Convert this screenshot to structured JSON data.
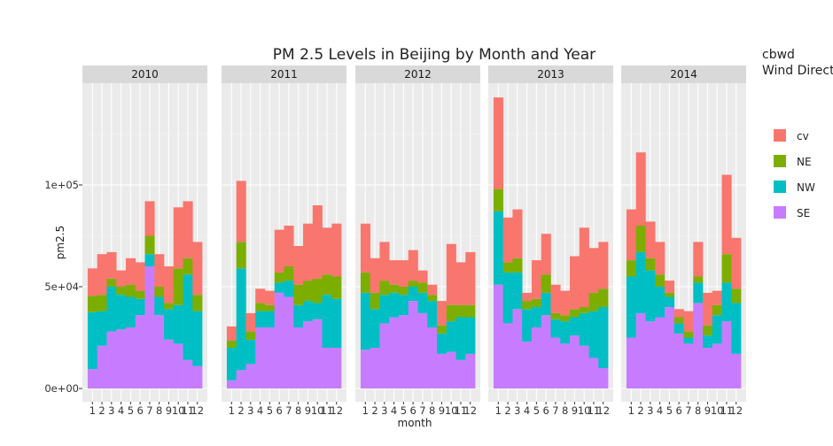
{
  "chart_data": {
    "type": "bar",
    "stacked": true,
    "title": "PM 2.5 Levels in Beijing by Month and Year",
    "xlabel": "month",
    "ylabel": "pm2.5",
    "ylim": [
      0,
      150000
    ],
    "y_ticks": [
      {
        "value": 0,
        "label": "0e+00"
      },
      {
        "value": 50000,
        "label": "5e+04"
      },
      {
        "value": 100000,
        "label": "1e+05"
      }
    ],
    "categories": [
      "1",
      "2",
      "3",
      "4",
      "5",
      "6",
      "7",
      "8",
      "9",
      "10",
      "11",
      "12"
    ],
    "legend": {
      "title_lines": [
        "cbwd",
        "Wind Direction"
      ],
      "position": "right",
      "items": [
        {
          "label": "cv",
          "color": "#F8766D"
        },
        {
          "label": "NE",
          "color": "#7CAE00"
        },
        {
          "label": "NW",
          "color": "#00BFC4"
        },
        {
          "label": "SE",
          "color": "#C77CFF"
        }
      ]
    },
    "stack_order": [
      "SE",
      "NW",
      "NE",
      "cv"
    ],
    "panels": [
      {
        "year": "2010",
        "series": [
          {
            "name": "SE",
            "values": [
              9500,
              21000,
              28000,
              29000,
              30000,
              36000,
              60000,
              36000,
              24000,
              22000,
              14000,
              11000
            ]
          },
          {
            "name": "NW",
            "values": [
              28000,
              17000,
              22000,
              17000,
              15000,
              8000,
              6000,
              9000,
              15000,
              19000,
              42000,
              27000
            ]
          },
          {
            "name": "NE",
            "values": [
              8000,
              8000,
              4000,
              4000,
              6000,
              4000,
              9000,
              5000,
              3000,
              18000,
              8000,
              8000
            ]
          },
          {
            "name": "cv",
            "values": [
              13500,
              20000,
              13000,
              8000,
              13000,
              14000,
              17000,
              16000,
              18000,
              30000,
              28000,
              26000
            ]
          }
        ]
      },
      {
        "year": "2011",
        "series": [
          {
            "name": "SE",
            "values": [
              4000,
              9000,
              12000,
              30000,
              30000,
              47000,
              45000,
              30000,
              33000,
              34000,
              20000,
              20000
            ]
          },
          {
            "name": "NW",
            "values": [
              16000,
              50000,
              12000,
              8000,
              8000,
              5000,
              8000,
              11000,
              10000,
              8000,
              26000,
              24000
            ]
          },
          {
            "name": "NE",
            "values": [
              3500,
              13000,
              4000,
              4000,
              3000,
              5000,
              7000,
              10000,
              10000,
              12000,
              10000,
              11000
            ]
          },
          {
            "name": "cv",
            "values": [
              7000,
              30000,
              9000,
              7000,
              7000,
              21000,
              20000,
              19000,
              28000,
              36000,
              23000,
              26000
            ]
          }
        ]
      },
      {
        "year": "2012",
        "series": [
          {
            "name": "SE",
            "values": [
              19000,
              20000,
              32000,
              35000,
              36000,
              43000,
              37000,
              30000,
              17000,
              18000,
              14000,
              17000
            ]
          },
          {
            "name": "NW",
            "values": [
              28000,
              19000,
              14000,
              12000,
              10000,
              7000,
              10000,
              13000,
              10000,
              15000,
              21000,
              18000
            ]
          },
          {
            "name": "NE",
            "values": [
              10000,
              8000,
              7000,
              4000,
              4000,
              3000,
              5000,
              3000,
              4000,
              8000,
              6000,
              6000
            ]
          },
          {
            "name": "cv",
            "values": [
              24000,
              17000,
              19000,
              12000,
              13000,
              15000,
              6000,
              5000,
              12000,
              30000,
              21000,
              26000
            ]
          }
        ]
      },
      {
        "year": "2013",
        "series": [
          {
            "name": "SE",
            "values": [
              51000,
              32000,
              39000,
              23000,
              30000,
              36000,
              25000,
              22000,
              26000,
              21000,
              15000,
              10000
            ]
          },
          {
            "name": "NW",
            "values": [
              36000,
              25000,
              18000,
              16000,
              10000,
              11000,
              9000,
              11000,
              9000,
              16000,
              23000,
              30000
            ]
          },
          {
            "name": "NE",
            "values": [
              11000,
              5000,
              7000,
              4000,
              4000,
              9000,
              3000,
              3000,
              4000,
              3000,
              9000,
              9000
            ]
          },
          {
            "name": "cv",
            "values": [
              45000,
              22000,
              24000,
              4000,
              19000,
              20000,
              14000,
              12000,
              26000,
              39000,
              22000,
              23000
            ]
          }
        ]
      },
      {
        "year": "2014",
        "series": [
          {
            "name": "SE",
            "values": [
              25000,
              37000,
              33000,
              35000,
              40000,
              27000,
              22000,
              42000,
              20000,
              22000,
              33000,
              17000
            ]
          },
          {
            "name": "NW",
            "values": [
              30000,
              30000,
              25000,
              15000,
              5000,
              5000,
              3000,
              10000,
              6000,
              14000,
              19000,
              25000
            ]
          },
          {
            "name": "NE",
            "values": [
              8000,
              13000,
              6000,
              6000,
              2000,
              3000,
              3000,
              3000,
              5000,
              5000,
              14000,
              7000
            ]
          },
          {
            "name": "cv",
            "values": [
              25000,
              36000,
              18000,
              16000,
              6000,
              4000,
              10000,
              17000,
              16000,
              7000,
              39000,
              25000
            ]
          }
        ]
      }
    ]
  }
}
